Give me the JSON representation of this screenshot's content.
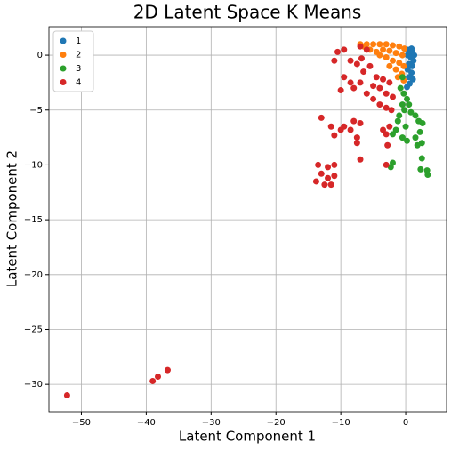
{
  "chart_data": {
    "type": "scatter",
    "title": "2D Latent Space K Means",
    "xlabel": "Latent Component 1",
    "ylabel": "Latent Component 2",
    "xlim": [
      -55,
      6.3
    ],
    "ylim": [
      -32.5,
      2.6
    ],
    "xticks": [
      {
        "value": -50,
        "label": "−50"
      },
      {
        "value": -40,
        "label": "−40"
      },
      {
        "value": -30,
        "label": "−30"
      },
      {
        "value": -20,
        "label": "−20"
      },
      {
        "value": -10,
        "label": "−10"
      },
      0
    ],
    "yticks": [
      0,
      {
        "value": -5,
        "label": "−5"
      },
      {
        "value": -10,
        "label": "−10"
      },
      {
        "value": -15,
        "label": "−15"
      },
      {
        "value": -20,
        "label": "−20"
      },
      {
        "value": -25,
        "label": "−25"
      },
      {
        "value": -30,
        "label": "−30"
      }
    ],
    "grid": true,
    "legend": "upper left",
    "series": [
      {
        "name": "1",
        "color": "#1f77b4",
        "x": [
          0.2,
          0.6,
          1,
          0.3,
          0.8,
          1.2,
          0.5,
          1,
          0.3,
          0.9,
          0.5,
          1.1,
          0.6,
          0.2,
          1.3,
          0.9
        ],
        "y": [
          0.5,
          0.5,
          0.3,
          0,
          -0.2,
          -0.5,
          -0.8,
          -1,
          -1.3,
          -1.6,
          -2,
          -2.2,
          -2.6,
          -2.9,
          0,
          0.6
        ]
      },
      {
        "name": "2",
        "color": "#ff7f0e",
        "x": [
          -6,
          -5,
          -4,
          -3,
          -2,
          -1,
          -0.2,
          -5.5,
          -4.5,
          -3.5,
          -2.5,
          -1.5,
          -0.5,
          -3,
          -2,
          -1,
          -0.3,
          -2.5,
          -1.5,
          -0.6,
          -1.2,
          -0.3,
          -4,
          -6.5,
          -7
        ],
        "y": [
          1,
          1,
          1,
          1,
          0.9,
          0.8,
          0.6,
          0.5,
          0.3,
          0.5,
          0.4,
          0.2,
          0,
          -0.2,
          -0.5,
          -0.7,
          -1,
          -1,
          -1.3,
          -1.7,
          -2,
          -2.3,
          0,
          0.8,
          1
        ]
      },
      {
        "name": "3",
        "color": "#2ca02c",
        "x": [
          -0.5,
          -0.8,
          -0.3,
          0.2,
          -0.5,
          0.5,
          -0.2,
          0.8,
          1.5,
          2,
          2.6,
          2.2,
          1.5,
          2.5,
          1.8,
          -1.2,
          -1.5,
          -2,
          -0.5,
          0.2,
          -2,
          -2.3,
          2.5,
          2.3,
          3.3,
          3.4,
          -1,
          0
        ],
        "y": [
          -2,
          -3,
          -3.5,
          -4,
          -4.5,
          -4.5,
          -5,
          -5.2,
          -5.5,
          -6,
          -6.2,
          -7,
          -7.5,
          -8,
          -8.2,
          -6,
          -6.8,
          -7.2,
          -7.5,
          -7.8,
          -9.8,
          -10.2,
          -9.4,
          -10.4,
          -10.5,
          -10.9,
          -5.5,
          -6.5
        ]
      },
      {
        "name": "4",
        "color": "#d62728",
        "x": [
          -7,
          -6,
          -6.8,
          -7.5,
          -5.5,
          -6.5,
          -4.5,
          -3.5,
          -2.5,
          -5,
          -4,
          -3,
          -2,
          -6,
          -5,
          -4,
          -3,
          -2.2,
          -8.5,
          -9.5,
          -10,
          -8,
          -11,
          -10.5,
          -9.5,
          -8.5,
          -7,
          -13,
          -8,
          -7,
          -8.5,
          -9.5,
          -7.5,
          -10,
          -11,
          -11.5,
          -7.5,
          -7,
          -3.5,
          -2.5,
          -3,
          -2.8,
          -13.5,
          -12,
          -11,
          -13,
          -12,
          -11,
          -13.8,
          -12.5,
          -11.5,
          -3,
          -52.2,
          -39,
          -38.2,
          -36.7
        ],
        "y": [
          0.8,
          0.5,
          -0.3,
          -0.8,
          -1,
          -1.5,
          -2,
          -2.2,
          -2.5,
          -2.8,
          -3,
          -3.5,
          -3.8,
          -3.5,
          -4,
          -4.5,
          -4.8,
          -5,
          -2.5,
          -2,
          -3.2,
          -3,
          -0.5,
          0.3,
          0.5,
          -0.5,
          -2.5,
          -5.7,
          -6,
          -6.2,
          -6.8,
          -6.5,
          -7.5,
          -6.8,
          -7.3,
          -6.5,
          -8,
          -9.5,
          -6.8,
          -6.5,
          -7.2,
          -8.2,
          -10,
          -10.2,
          -10,
          -10.8,
          -11.2,
          -11,
          -11.5,
          -11.8,
          -11.8,
          -10,
          -31,
          -29.7,
          -29.3,
          -28.7
        ]
      }
    ]
  }
}
